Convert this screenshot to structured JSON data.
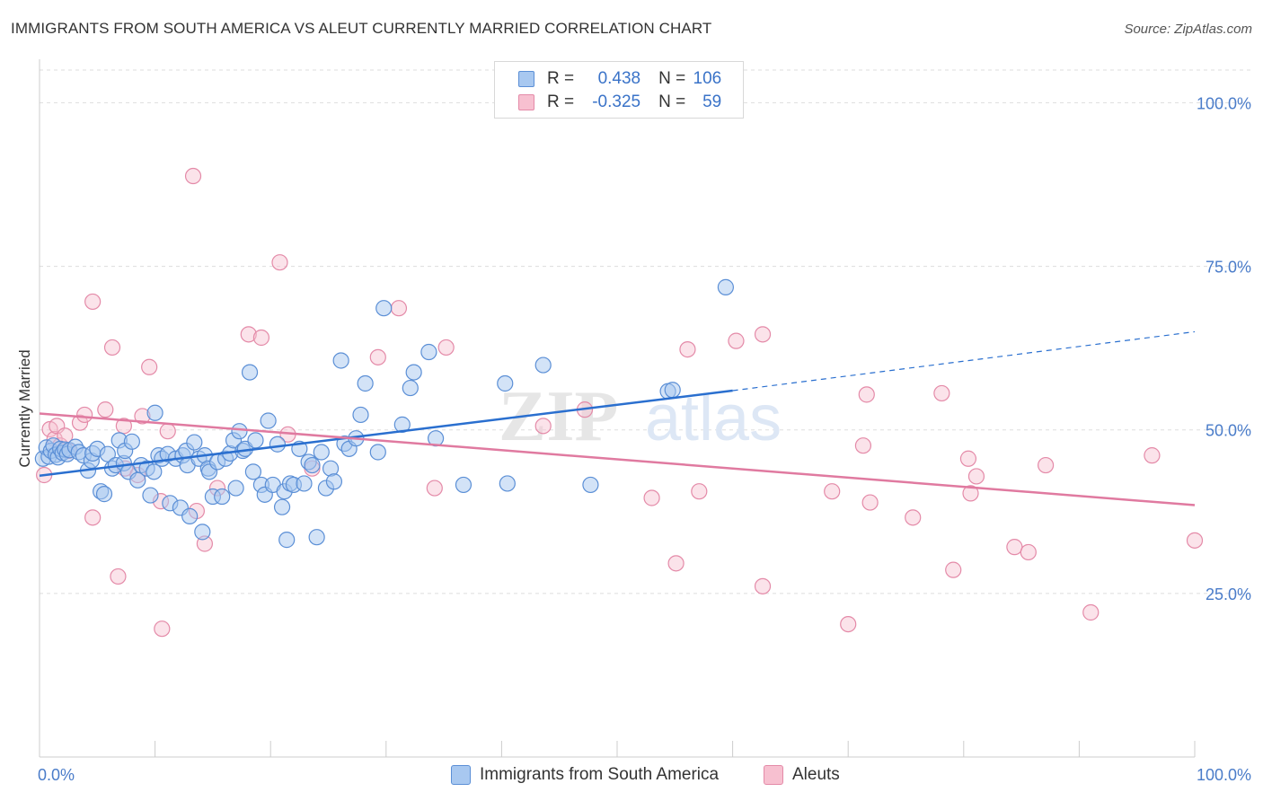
{
  "header": {
    "title": "IMMIGRANTS FROM SOUTH AMERICA VS ALEUT CURRENTLY MARRIED CORRELATION CHART",
    "source": "Source: ZipAtlas.com"
  },
  "watermark": {
    "zip": "ZIP",
    "atlas": "atlas"
  },
  "legend": {
    "rows": [
      {
        "r_label": "R =",
        "r_value": "0.438",
        "n_label": "N =",
        "n_value": "106"
      },
      {
        "r_label": "R =",
        "r_value": "-0.325",
        "n_label": "N =",
        "n_value": "59"
      }
    ]
  },
  "bottom_legend": {
    "blue_label": "Immigrants from South America",
    "pink_label": "Aleuts"
  },
  "colors": {
    "blue_fill": "#a8c8f0",
    "blue_stroke": "#5b8fd6",
    "blue_line": "#2a6fcf",
    "pink_fill": "#f7c0d0",
    "pink_stroke": "#e48aa8",
    "pink_line": "#e07aa0",
    "tick_text": "#4a7cc9",
    "grid": "#dddddd"
  },
  "chart_data": {
    "type": "scatter",
    "title": "IMMIGRANTS FROM SOUTH AMERICA VS ALEUT CURRENTLY MARRIED CORRELATION CHART",
    "xlabel": "",
    "ylabel": "Currently Married",
    "xlim": [
      0,
      100
    ],
    "ylim": [
      0,
      105
    ],
    "x_tick_labels": [
      "0.0%",
      "100.0%"
    ],
    "y_ticks": [
      25,
      50,
      75,
      100
    ],
    "y_tick_labels": [
      "25.0%",
      "50.0%",
      "75.0%",
      "100.0%"
    ],
    "grid": true,
    "legend_position": "top-center",
    "series": [
      {
        "name": "Immigrants from South America",
        "color": "#a8c8f0",
        "trend": {
          "x": [
            0,
            60
          ],
          "y": [
            43,
            56
          ],
          "dashed_to": [
            100,
            65
          ]
        },
        "points": [
          [
            0.3,
            45.6
          ],
          [
            0.6,
            47.3
          ],
          [
            0.8,
            45.9
          ],
          [
            1,
            46.8
          ],
          [
            1.2,
            47.6
          ],
          [
            1.4,
            46.2
          ],
          [
            1.6,
            45.8
          ],
          [
            1.8,
            47.1
          ],
          [
            2,
            46.5
          ],
          [
            2.2,
            47
          ],
          [
            2.4,
            46.3
          ],
          [
            2.6,
            46.9
          ],
          [
            3.1,
            47.4
          ],
          [
            3.4,
            46.6
          ],
          [
            3.8,
            46.1
          ],
          [
            4.2,
            43.8
          ],
          [
            4.5,
            45.3
          ],
          [
            4.6,
            46.4
          ],
          [
            5,
            47.1
          ],
          [
            5.3,
            40.6
          ],
          [
            5.6,
            40.2
          ],
          [
            5.9,
            46.3
          ],
          [
            6.3,
            44.1
          ],
          [
            6.6,
            44.6
          ],
          [
            6.9,
            48.4
          ],
          [
            7.3,
            44.9
          ],
          [
            7.4,
            46.8
          ],
          [
            7.7,
            43.6
          ],
          [
            8,
            48.2
          ],
          [
            8.5,
            42.3
          ],
          [
            8.8,
            44.6
          ],
          [
            9.3,
            44.1
          ],
          [
            9.6,
            40
          ],
          [
            9.9,
            43.6
          ],
          [
            10,
            52.6
          ],
          [
            10.3,
            46.1
          ],
          [
            10.6,
            45.6
          ],
          [
            11.1,
            46.3
          ],
          [
            11.3,
            38.8
          ],
          [
            11.8,
            45.6
          ],
          [
            12.2,
            38.1
          ],
          [
            12.4,
            46.1
          ],
          [
            12.7,
            46.8
          ],
          [
            12.8,
            44.6
          ],
          [
            13,
            36.8
          ],
          [
            13.4,
            48.1
          ],
          [
            13.8,
            45.6
          ],
          [
            14.1,
            34.4
          ],
          [
            14.3,
            46.1
          ],
          [
            14.6,
            44.1
          ],
          [
            14.7,
            43.6
          ],
          [
            15,
            39.8
          ],
          [
            15.4,
            45.1
          ],
          [
            15.8,
            39.8
          ],
          [
            16.1,
            45.6
          ],
          [
            16.5,
            46.4
          ],
          [
            16.8,
            48.4
          ],
          [
            17,
            41.1
          ],
          [
            17.3,
            49.8
          ],
          [
            17.6,
            46.8
          ],
          [
            17.8,
            47.1
          ],
          [
            18.2,
            58.8
          ],
          [
            18.5,
            43.6
          ],
          [
            18.7,
            48.4
          ],
          [
            19.2,
            41.6
          ],
          [
            19.5,
            40.1
          ],
          [
            19.8,
            51.4
          ],
          [
            20.2,
            41.6
          ],
          [
            20.6,
            47.8
          ],
          [
            21,
            38.2
          ],
          [
            21.2,
            40.6
          ],
          [
            21.4,
            33.2
          ],
          [
            21.7,
            41.8
          ],
          [
            22,
            41.6
          ],
          [
            22.5,
            47.1
          ],
          [
            22.9,
            41.8
          ],
          [
            23.3,
            45.1
          ],
          [
            23.6,
            44.6
          ],
          [
            24,
            33.6
          ],
          [
            24.4,
            46.6
          ],
          [
            24.8,
            41.1
          ],
          [
            25.2,
            44.1
          ],
          [
            25.5,
            42.1
          ],
          [
            26.1,
            60.6
          ],
          [
            26.4,
            47.9
          ],
          [
            26.8,
            47.1
          ],
          [
            27.4,
            48.7
          ],
          [
            27.8,
            52.3
          ],
          [
            28.2,
            57.1
          ],
          [
            29.3,
            46.6
          ],
          [
            29.8,
            68.6
          ],
          [
            31.4,
            50.8
          ],
          [
            32.1,
            56.4
          ],
          [
            32.4,
            58.8
          ],
          [
            33.7,
            61.9
          ],
          [
            34.3,
            48.7
          ],
          [
            36.7,
            41.6
          ],
          [
            40.3,
            57.1
          ],
          [
            40.5,
            41.8
          ],
          [
            43.6,
            59.9
          ],
          [
            47.7,
            41.6
          ],
          [
            54.4,
            55.9
          ],
          [
            54.8,
            56.1
          ],
          [
            59.4,
            71.8
          ]
        ]
      },
      {
        "name": "Aleuts",
        "color": "#f7c0d0",
        "trend": {
          "x": [
            0,
            100
          ],
          "y": [
            52.5,
            38.5
          ]
        },
        "points": [
          [
            0.4,
            43.1
          ],
          [
            0.9,
            50.1
          ],
          [
            1.3,
            48.6
          ],
          [
            1.5,
            50.6
          ],
          [
            1.8,
            47.6
          ],
          [
            2.2,
            49.1
          ],
          [
            2.5,
            46.8
          ],
          [
            3.5,
            51.1
          ],
          [
            3.9,
            52.3
          ],
          [
            4.6,
            36.6
          ],
          [
            4.6,
            69.6
          ],
          [
            5.7,
            53.1
          ],
          [
            6.3,
            62.6
          ],
          [
            6.8,
            27.6
          ],
          [
            7.3,
            50.6
          ],
          [
            7.4,
            44.1
          ],
          [
            8.5,
            43.1
          ],
          [
            8.9,
            52.1
          ],
          [
            9.5,
            59.6
          ],
          [
            10.5,
            39.1
          ],
          [
            10.6,
            19.6
          ],
          [
            11.1,
            49.8
          ],
          [
            13.3,
            88.8
          ],
          [
            13.6,
            37.6
          ],
          [
            14.3,
            32.6
          ],
          [
            15.4,
            41.1
          ],
          [
            18.1,
            64.6
          ],
          [
            19.2,
            64.1
          ],
          [
            20.8,
            75.6
          ],
          [
            21.5,
            49.3
          ],
          [
            23.6,
            44.1
          ],
          [
            29.3,
            61.1
          ],
          [
            31.1,
            68.6
          ],
          [
            34.2,
            41.1
          ],
          [
            35.2,
            62.6
          ],
          [
            43.6,
            50.6
          ],
          [
            47.2,
            53.1
          ],
          [
            53,
            39.6
          ],
          [
            55.1,
            29.6
          ],
          [
            56.1,
            62.3
          ],
          [
            57.1,
            40.6
          ],
          [
            60.3,
            63.6
          ],
          [
            62.6,
            64.6
          ],
          [
            62.6,
            26.1
          ],
          [
            68.6,
            40.6
          ],
          [
            70,
            20.3
          ],
          [
            71.3,
            47.6
          ],
          [
            71.6,
            55.4
          ],
          [
            71.9,
            38.9
          ],
          [
            75.6,
            36.6
          ],
          [
            78.1,
            55.6
          ],
          [
            79.1,
            28.6
          ],
          [
            80.4,
            45.6
          ],
          [
            80.6,
            40.3
          ],
          [
            81.1,
            42.9
          ],
          [
            84.4,
            32.1
          ],
          [
            85.6,
            31.3
          ],
          [
            87.1,
            44.6
          ],
          [
            91,
            22.1
          ],
          [
            96.3,
            46.1
          ],
          [
            100,
            33.1
          ]
        ]
      }
    ]
  }
}
